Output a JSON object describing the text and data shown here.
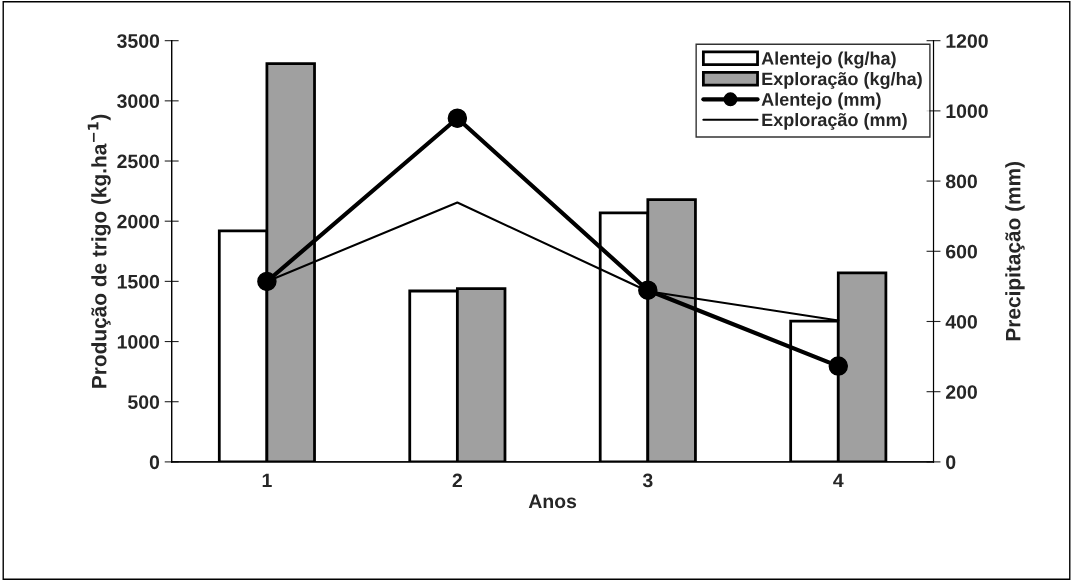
{
  "chart_data": {
    "type": "bar",
    "xlabel": "Anos",
    "ylabel": "Produção de trigo (kg.ha$^{−1}$)",
    "y2label": "Precipitação (mm)",
    "categories": [
      "1",
      "2",
      "3",
      "4"
    ],
    "series": [
      {
        "name": "Alentejo (kg/ha)",
        "color": "#ffffff",
        "values": [
          1920,
          1420,
          2070,
          1170
        ]
      },
      {
        "name": "Exploração (kg/ha)",
        "color": "#a0a0a0",
        "values": [
          3310,
          1440,
          2180,
          1570
        ]
      },
      {
        "name": "Alentejo (mm)",
        "type": "line",
        "axis": "y2",
        "color": "#000000",
        "marker": "circle",
        "values": [
          514,
          979,
          489,
          273
        ]
      },
      {
        "name": "Exploração (mm)",
        "type": "line",
        "axis": "y2",
        "color": "#000000",
        "marker": "none",
        "values": [
          514,
          739,
          486,
          403
        ]
      }
    ],
    "ylim": [
      0,
      3500
    ],
    "yticks": [
      0,
      500,
      1000,
      1500,
      2000,
      2500,
      3000,
      3500
    ],
    "y2lim": [
      0,
      1200
    ],
    "y2ticks": [
      0,
      200,
      400,
      600,
      800,
      1000,
      1200
    ],
    "grid": false,
    "legend": "top right"
  }
}
